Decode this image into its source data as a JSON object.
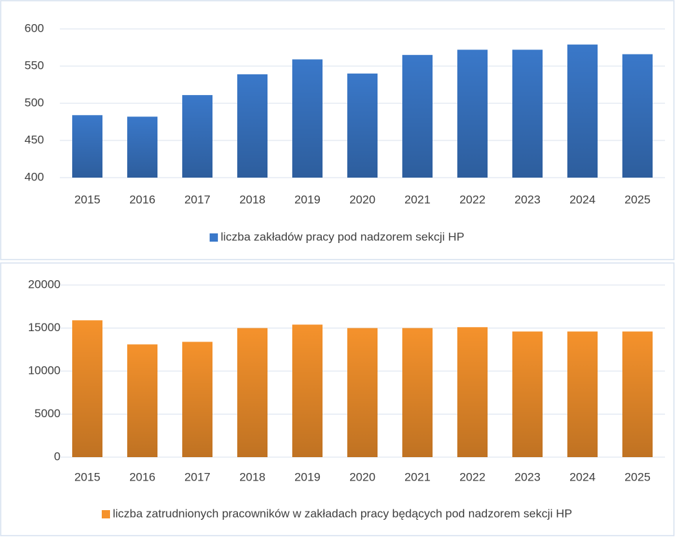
{
  "chart_data": [
    {
      "type": "bar",
      "categories": [
        "2015",
        "2016",
        "2017",
        "2018",
        "2019",
        "2020",
        "2021",
        "2022",
        "2023",
        "2024",
        "2025"
      ],
      "series": [
        {
          "name": "liczba zakładów pracy pod nadzorem sekcji HP",
          "color": "#3a78c9",
          "values": [
            484,
            482,
            511,
            539,
            559,
            540,
            565,
            572,
            572,
            579,
            566
          ]
        }
      ],
      "ylim": [
        400,
        600
      ],
      "yticks": [
        400,
        450,
        500,
        550,
        600
      ],
      "grid": true,
      "legend": "bottom"
    },
    {
      "type": "bar",
      "categories": [
        "2015",
        "2016",
        "2017",
        "2018",
        "2019",
        "2020",
        "2021",
        "2022",
        "2023",
        "2024",
        "2025"
      ],
      "series": [
        {
          "name": "liczba zatrudnionych pracowników w zakładach pracy będących pod nadzorem sekcji HP",
          "color": "#f5922c",
          "values": [
            15900,
            13100,
            13400,
            15000,
            15400,
            15000,
            15000,
            15100,
            14600,
            14600,
            14600
          ]
        }
      ],
      "ylim": [
        0,
        20000
      ],
      "yticks": [
        0,
        5000,
        10000,
        15000,
        20000
      ],
      "grid": true,
      "legend": "bottom"
    }
  ]
}
